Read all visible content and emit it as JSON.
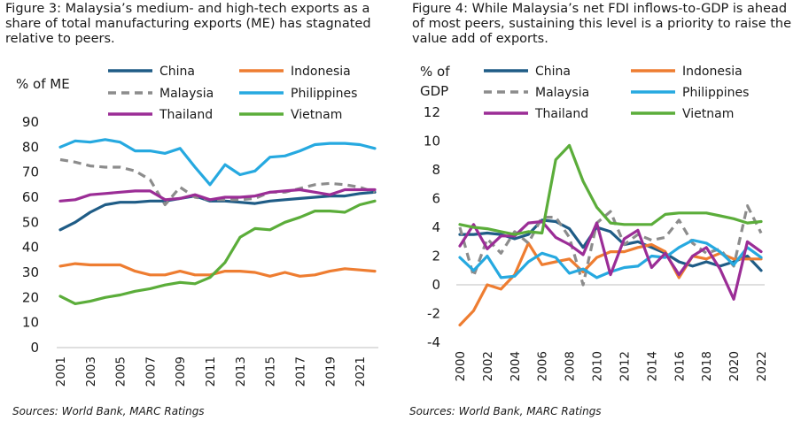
{
  "captions": {
    "left": "Figure 3: Malaysia’s medium- and high-tech exports as a share of total manufacturing exports (ME) has stagnated relative to peers.",
    "right": "Figure 4: While Malaysia’s net FDI inflows-to-GDP is ahead of most peers, sustaining this level is a priority to raise the value add of exports."
  },
  "sources": {
    "left": "Sources: World Bank, MARC Ratings",
    "right": "Sources: World Bank, MARC Ratings"
  },
  "colors": {
    "China": "#1F5C86",
    "Indonesia": "#EE7D31",
    "Malaysia": "#8C8C8C",
    "Philippines": "#26A9E0",
    "Thailand": "#9B2D96",
    "Vietnam": "#5BAD3A"
  },
  "chart_data": [
    {
      "type": "line",
      "ylabel": "% of ME",
      "ylim": [
        0,
        90
      ],
      "yticks": [
        0,
        10,
        20,
        30,
        40,
        50,
        60,
        70,
        80,
        90
      ],
      "xlim": [
        2001,
        2022
      ],
      "xticks": [
        2001,
        2003,
        2005,
        2007,
        2009,
        2011,
        2013,
        2015,
        2017,
        2019,
        2021
      ],
      "legend": "top",
      "grid": false,
      "series": [
        {
          "name": "China",
          "x": [
            2001,
            2002,
            2003,
            2004,
            2005,
            2006,
            2007,
            2008,
            2009,
            2010,
            2011,
            2012,
            2013,
            2014,
            2015,
            2016,
            2017,
            2018,
            2019,
            2020,
            2021,
            2022
          ],
          "values": [
            47,
            50,
            54,
            57,
            58,
            58,
            58.5,
            58.5,
            59.5,
            60.5,
            58.5,
            58.5,
            58,
            57.5,
            58.5,
            59,
            59.5,
            60,
            60.5,
            60.5,
            61.5,
            62
          ]
        },
        {
          "name": "Indonesia",
          "x": [
            2001,
            2002,
            2003,
            2004,
            2005,
            2006,
            2007,
            2008,
            2009,
            2010,
            2011,
            2012,
            2013,
            2014,
            2015,
            2016,
            2017,
            2018,
            2019,
            2020,
            2021,
            2022
          ],
          "values": [
            32.5,
            33.5,
            33,
            33,
            33,
            30.5,
            29,
            29,
            30.5,
            29,
            29,
            30.5,
            30.5,
            30,
            28.5,
            30,
            28.5,
            29,
            30.5,
            31.5,
            31,
            30.5
          ]
        },
        {
          "name": "Malaysia",
          "x": [
            2001,
            2002,
            2003,
            2004,
            2005,
            2006,
            2007,
            2008,
            2009,
            2010,
            2011,
            2012,
            2013,
            2014,
            2015,
            2016,
            2017,
            2018,
            2019,
            2020,
            2021,
            2022
          ],
          "values": [
            75,
            74,
            72.5,
            72,
            72,
            70.5,
            67,
            57,
            64,
            60,
            59,
            59,
            59,
            59.5,
            62,
            62,
            63.5,
            65,
            65.5,
            65,
            64,
            62
          ]
        },
        {
          "name": "Philippines",
          "x": [
            2001,
            2002,
            2003,
            2004,
            2005,
            2006,
            2007,
            2008,
            2009,
            2010,
            2011,
            2012,
            2013,
            2014,
            2015,
            2016,
            2017,
            2018,
            2019,
            2020,
            2021,
            2022
          ],
          "values": [
            80,
            82.5,
            82,
            83,
            82,
            78.5,
            78.5,
            77.5,
            79.5,
            72,
            65,
            73,
            69,
            70.5,
            76,
            76.5,
            78.5,
            81,
            81.5,
            81.5,
            81,
            79.5
          ]
        },
        {
          "name": "Thailand",
          "x": [
            2001,
            2002,
            2003,
            2004,
            2005,
            2006,
            2007,
            2008,
            2009,
            2010,
            2011,
            2012,
            2013,
            2014,
            2015,
            2016,
            2017,
            2018,
            2019,
            2020,
            2021,
            2022
          ],
          "values": [
            58.5,
            59,
            61,
            61.5,
            62,
            62.5,
            62.5,
            59,
            59.5,
            61,
            59,
            60,
            60,
            60.5,
            62,
            62.5,
            63,
            62,
            61,
            63,
            63,
            63
          ]
        },
        {
          "name": "Vietnam",
          "x": [
            2001,
            2002,
            2003,
            2004,
            2005,
            2006,
            2007,
            2008,
            2009,
            2010,
            2011,
            2012,
            2013,
            2014,
            2015,
            2016,
            2017,
            2018,
            2019,
            2020,
            2021,
            2022
          ],
          "values": [
            20.5,
            17.5,
            18.5,
            20,
            21,
            22.5,
            23.5,
            25,
            26,
            25.5,
            28,
            34,
            44,
            47.5,
            47,
            50,
            52,
            54.5,
            54.5,
            54,
            57,
            58.5
          ]
        }
      ]
    },
    {
      "type": "line",
      "ylabel": "% of GDP",
      "ylim": [
        -4,
        12
      ],
      "yticks": [
        -4,
        -2,
        0,
        2,
        4,
        6,
        8,
        10,
        12
      ],
      "xlim": [
        2000,
        2022
      ],
      "xticks": [
        2000,
        2002,
        2004,
        2006,
        2008,
        2010,
        2012,
        2014,
        2016,
        2018,
        2020,
        2022
      ],
      "legend": "top",
      "grid": false,
      "series": [
        {
          "name": "China",
          "x": [
            2000,
            2001,
            2002,
            2003,
            2004,
            2005,
            2006,
            2007,
            2008,
            2009,
            2010,
            2011,
            2012,
            2013,
            2014,
            2015,
            2016,
            2017,
            2018,
            2019,
            2020,
            2021,
            2022
          ],
          "values": [
            3.5,
            3.5,
            3.6,
            3.5,
            3.2,
            3.5,
            4.5,
            4.4,
            3.9,
            2.6,
            4,
            3.7,
            2.8,
            3,
            2.6,
            2.2,
            1.6,
            1.3,
            1.6,
            1.3,
            1.6,
            2,
            1
          ]
        },
        {
          "name": "Indonesia",
          "x": [
            2000,
            2001,
            2002,
            2003,
            2004,
            2005,
            2006,
            2007,
            2008,
            2009,
            2010,
            2011,
            2012,
            2013,
            2014,
            2015,
            2016,
            2017,
            2018,
            2019,
            2020,
            2021,
            2022
          ],
          "values": [
            -2.8,
            -1.8,
            0,
            -0.3,
            0.7,
            2.9,
            1.4,
            1.6,
            1.8,
            0.9,
            1.9,
            2.3,
            2.3,
            2.6,
            2.8,
            2.3,
            0.5,
            2,
            1.8,
            2.2,
            1.8,
            1.8,
            1.8
          ]
        },
        {
          "name": "Malaysia",
          "x": [
            2000,
            2001,
            2002,
            2003,
            2004,
            2005,
            2006,
            2007,
            2008,
            2009,
            2010,
            2011,
            2012,
            2013,
            2014,
            2015,
            2016,
            2017,
            2018,
            2019,
            2020,
            2021,
            2022
          ],
          "values": [
            4,
            0.6,
            3.2,
            2.2,
            3.7,
            2.9,
            4.7,
            4.7,
            3.3,
            0,
            4.3,
            5.1,
            2.8,
            3.5,
            3.1,
            3.3,
            4.5,
            2.9,
            2.2,
            2.5,
            1.3,
            5.5,
            3.6
          ]
        },
        {
          "name": "Philippines",
          "x": [
            2000,
            2001,
            2002,
            2003,
            2004,
            2005,
            2006,
            2007,
            2008,
            2009,
            2010,
            2011,
            2012,
            2013,
            2014,
            2015,
            2016,
            2017,
            2018,
            2019,
            2020,
            2021,
            2022
          ],
          "values": [
            1.9,
            1,
            2,
            0.5,
            0.6,
            1.6,
            2.2,
            1.9,
            0.8,
            1.1,
            0.5,
            0.9,
            1.2,
            1.3,
            2,
            1.9,
            2.6,
            3.1,
            2.9,
            2.3,
            1.4,
            2.6,
            1.9
          ]
        },
        {
          "name": "Thailand",
          "x": [
            2000,
            2001,
            2002,
            2003,
            2004,
            2005,
            2006,
            2007,
            2008,
            2009,
            2010,
            2011,
            2012,
            2013,
            2014,
            2015,
            2016,
            2017,
            2018,
            2019,
            2020,
            2021,
            2022
          ],
          "values": [
            2.7,
            4.2,
            2.5,
            3.4,
            3.4,
            4.3,
            4.4,
            3.3,
            2.8,
            2.1,
            4.3,
            0.7,
            3.2,
            3.8,
            1.2,
            2.2,
            0.7,
            2,
            2.6,
            1.1,
            -1,
            3,
            2.3
          ]
        },
        {
          "name": "Vietnam",
          "x": [
            2000,
            2001,
            2002,
            2003,
            2004,
            2005,
            2006,
            2007,
            2008,
            2009,
            2010,
            2011,
            2012,
            2013,
            2014,
            2015,
            2016,
            2017,
            2018,
            2019,
            2020,
            2021,
            2022
          ],
          "values": [
            4.2,
            4,
            3.9,
            3.7,
            3.5,
            3.7,
            3.6,
            8.7,
            9.7,
            7.2,
            5.4,
            4.3,
            4.2,
            4.2,
            4.2,
            4.9,
            5,
            5,
            5,
            4.8,
            4.6,
            4.3,
            4.4
          ]
        }
      ]
    }
  ]
}
